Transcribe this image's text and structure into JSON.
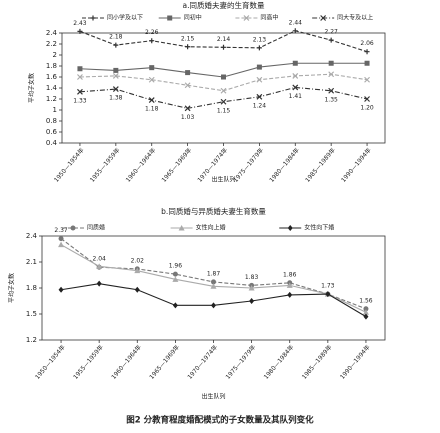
{
  "chart_data": [
    {
      "type": "line",
      "title": "a.同质婚夫妻的生育数量",
      "y_label": "平均子女数",
      "x_label": "出生队列",
      "categories": [
        "1950—1954年",
        "1955—1959年",
        "1960—1964年",
        "1965—1969年",
        "1970—1974年",
        "1975—1979年",
        "1980—1984年",
        "1985—1989年",
        "1990—1994年"
      ],
      "ylim": [
        0.4,
        2.4
      ],
      "yticks": [
        0.4,
        0.6,
        0.8,
        1,
        1.2,
        1.4,
        1.6,
        1.8,
        2,
        2.2,
        2.4
      ],
      "series": [
        {
          "name": "同小学及以下",
          "color": "#333333",
          "dash": "4 2",
          "marker": "plus",
          "values": [
            2.43,
            2.18,
            2.26,
            2.15,
            2.14,
            2.13,
            2.44,
            2.27,
            2.06
          ]
        },
        {
          "name": "同初中",
          "color": "#666666",
          "dash": "none",
          "marker": "square",
          "values": [
            1.75,
            1.72,
            1.77,
            1.68,
            1.6,
            1.78,
            1.85,
            1.85,
            1.85
          ]
        },
        {
          "name": "同高中",
          "color": "#aaaaaa",
          "dash": "4 2",
          "marker": "x",
          "values": [
            1.6,
            1.62,
            1.55,
            1.45,
            1.35,
            1.55,
            1.62,
            1.65,
            1.55
          ]
        },
        {
          "name": "同大专及以上",
          "color": "#333333",
          "dash": "5 2 1 2",
          "marker": "x",
          "values": [
            1.33,
            1.38,
            1.18,
            1.03,
            1.15,
            1.24,
            1.41,
            1.35,
            1.2
          ],
          "value_labels": [
            "1.33",
            "1.38",
            "1.18",
            "1.03",
            "1.15",
            "1.24",
            "1.41",
            "1.35",
            "1.20"
          ]
        }
      ]
    },
    {
      "type": "line",
      "title": "b.同质婚与异质婚夫妻生育数量",
      "y_label": "平均子女数",
      "x_label": "出生队列",
      "categories": [
        "1950—1954年",
        "1955—1959年",
        "1960—1964年",
        "1965—1969年",
        "1970—1974年",
        "1975—1979年",
        "1980—1984年",
        "1985—1989年",
        "1990—1994年"
      ],
      "ylim": [
        1.2,
        2.4
      ],
      "yticks": [
        1.2,
        1.5,
        1.8,
        2.1,
        2.4
      ],
      "series": [
        {
          "name": "同质婚",
          "color": "#777777",
          "dash": "4 2",
          "marker": "circle",
          "values": [
            2.37,
            2.04,
            2.02,
            1.96,
            1.87,
            1.83,
            1.86,
            1.73,
            1.56
          ]
        },
        {
          "name": "女性向上婚",
          "color": "#aaaaaa",
          "dash": "none",
          "marker": "triangle",
          "values": [
            2.3,
            2.05,
            2.0,
            1.9,
            1.82,
            1.8,
            1.83,
            1.73,
            1.52
          ]
        },
        {
          "name": "女性向下婚",
          "color": "#222222",
          "dash": "none",
          "marker": "diamond",
          "values": [
            1.78,
            1.85,
            1.78,
            1.6,
            1.6,
            1.65,
            1.72,
            1.73,
            1.47
          ]
        }
      ]
    }
  ],
  "caption": "图2 分教育程度婚配模式的子女数量及其队列变化"
}
